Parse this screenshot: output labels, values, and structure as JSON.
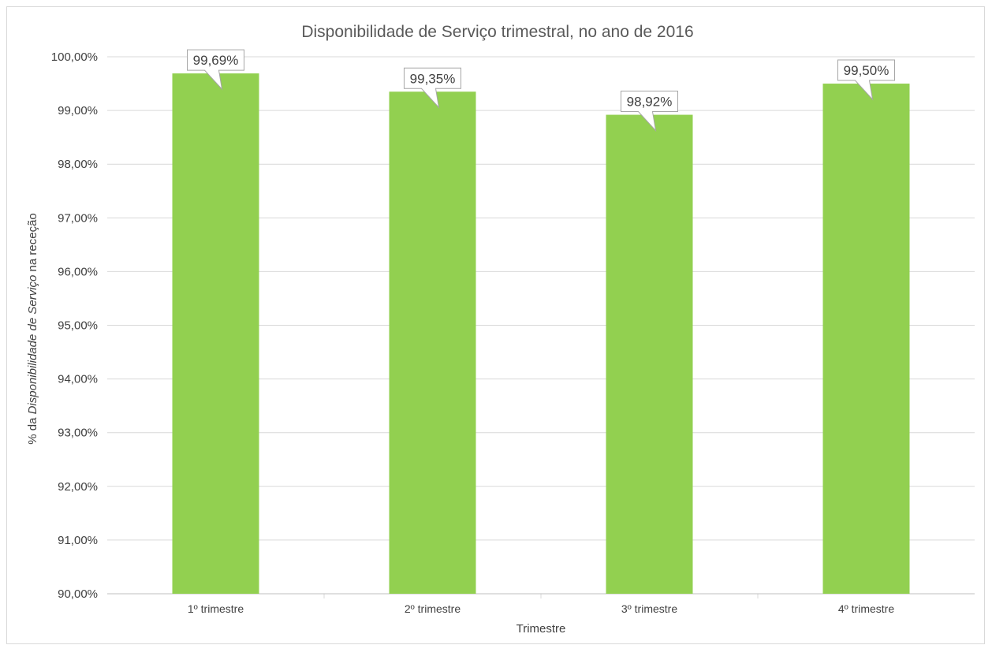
{
  "chart_data": {
    "type": "bar",
    "title": "Disponibilidade de Serviço trimestral, no ano de 2016",
    "xlabel": "Trimestre",
    "ylabel": {
      "prefix": "% da ",
      "italic": "Disponibilidade de Serviço",
      "suffix": " na receção"
    },
    "categories": [
      "1º trimestre",
      "2º trimestre",
      "3º trimestre",
      "4º trimestre"
    ],
    "values": [
      99.69,
      99.35,
      98.92,
      99.5
    ],
    "data_labels": [
      "99,69%",
      "99,35%",
      "98,92%",
      "99,50%"
    ],
    "ylim": [
      90,
      100
    ],
    "ytick_values": [
      90,
      91,
      92,
      93,
      94,
      95,
      96,
      97,
      98,
      99,
      100
    ],
    "yticks": [
      "90,00%",
      "91,00%",
      "92,00%",
      "93,00%",
      "94,00%",
      "95,00%",
      "96,00%",
      "97,00%",
      "98,00%",
      "99,00%",
      "100,00%"
    ],
    "grid": true,
    "legend": "none",
    "bar_color": "#92d050",
    "grid_color": "#d9d9d9"
  }
}
